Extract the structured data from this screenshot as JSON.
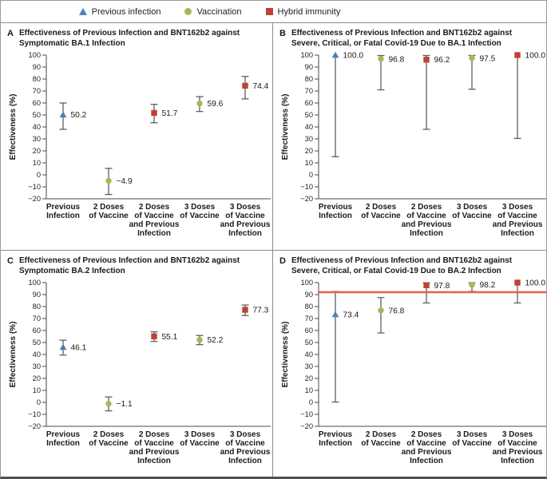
{
  "legend": {
    "items": [
      {
        "icon": "triangle-icon",
        "label": "Previous infection",
        "color": "#4e7fba"
      },
      {
        "icon": "circle-icon",
        "label": "Vaccination",
        "color": "#9fbb58"
      },
      {
        "icon": "square-icon",
        "label": "Hybrid immunity",
        "color": "#bf4136"
      }
    ]
  },
  "colors": {
    "previous_infection": "#4e7fba",
    "vaccination": "#9fbb58",
    "hybrid_immunity": "#bf4136",
    "refline": "#e4604e",
    "error_bar": "#5f5f5f",
    "axis": "#4a4a4a",
    "text": "#1a1a1a"
  },
  "panels": [
    {
      "letter": "A",
      "title_line1": "Effectiveness of Previous Infection and BNT162b2 against",
      "title_line2": "Symptomatic BA.1 Infection"
    },
    {
      "letter": "B",
      "title_line1": "Effectiveness of Previous Infection and BNT162b2 against",
      "title_line2": "Severe, Critical, or Fatal Covid-19 Due to BA.1 Infection"
    },
    {
      "letter": "C",
      "title_line1": "Effectiveness of Previous Infection and BNT162b2 against",
      "title_line2": "Symptomatic BA.2 Infection"
    },
    {
      "letter": "D",
      "title_line1": "Effectiveness of Previous Infection and BNT162b2 against",
      "title_line2": "Severe, Critical, or Fatal Covid-19 Due to BA.2 Infection"
    }
  ],
  "chart_data": [
    {
      "type": "scatter",
      "panel": "A",
      "title": "Effectiveness of Previous Infection and BNT162b2 against Symptomatic BA.1 Infection",
      "ylabel": "Effectiveness (%)",
      "ylim": [
        -20,
        100
      ],
      "ytick_step": 10,
      "grid": false,
      "categories": [
        [
          "Previous",
          "Infection"
        ],
        [
          "2 Doses",
          "of Vaccine"
        ],
        [
          "2 Doses",
          "of Vaccine",
          "and Previous",
          "Infection"
        ],
        [
          "3 Doses",
          "of Vaccine"
        ],
        [
          "3 Doses",
          "of Vaccine",
          "and Previous",
          "Infection"
        ]
      ],
      "points": [
        {
          "marker": "triangle",
          "series": "Previous infection",
          "value": 50.2,
          "label": "50.2",
          "ci_low": 38.0,
          "ci_high": 60.0
        },
        {
          "marker": "circle",
          "series": "Vaccination",
          "value": -4.9,
          "label": "−4.9",
          "ci_low": -16.4,
          "ci_high": 5.4
        },
        {
          "marker": "square",
          "series": "Hybrid immunity",
          "value": 51.7,
          "label": "51.7",
          "ci_low": 43.5,
          "ci_high": 58.9
        },
        {
          "marker": "circle",
          "series": "Vaccination",
          "value": 59.6,
          "label": "59.6",
          "ci_low": 52.9,
          "ci_high": 65.3
        },
        {
          "marker": "square",
          "series": "Hybrid immunity",
          "value": 74.4,
          "label": "74.4",
          "ci_low": 63.4,
          "ci_high": 82.2
        }
      ],
      "refline": null
    },
    {
      "type": "scatter",
      "panel": "B",
      "title": "Effectiveness of Previous Infection and BNT162b2 against Severe, Critical, or Fatal Covid-19 Due to BA.1 Infection",
      "ylabel": "Effectiveness (%)",
      "ylim": [
        -20,
        100
      ],
      "ytick_step": 10,
      "grid": false,
      "categories": [
        [
          "Previous",
          "Infection"
        ],
        [
          "2 Doses",
          "of Vaccine"
        ],
        [
          "2 Doses",
          "of Vaccine",
          "and Previous",
          "Infection"
        ],
        [
          "3 Doses",
          "of Vaccine"
        ],
        [
          "3 Doses",
          "of Vaccine",
          "and Previous",
          "Infection"
        ]
      ],
      "points": [
        {
          "marker": "triangle",
          "series": "Previous infection",
          "value": 100.0,
          "label": "100.0",
          "ci_low": 15.1,
          "ci_high": null
        },
        {
          "marker": "circle",
          "series": "Vaccination",
          "value": 96.8,
          "label": "96.8",
          "ci_low": 71.0,
          "ci_high": 99.6
        },
        {
          "marker": "square",
          "series": "Hybrid immunity",
          "value": 96.2,
          "label": "96.2",
          "ci_low": 38.0,
          "ci_high": 99.7
        },
        {
          "marker": "circle",
          "series": "Vaccination",
          "value": 97.5,
          "label": "97.5",
          "ci_low": 71.5,
          "ci_high": 99.7
        },
        {
          "marker": "square",
          "series": "Hybrid immunity",
          "value": 100.0,
          "label": "100.0",
          "ci_low": 30.4,
          "ci_high": null
        }
      ],
      "refline": null
    },
    {
      "type": "scatter",
      "panel": "C",
      "title": "Effectiveness of Previous Infection and BNT162b2 against Symptomatic BA.2 Infection",
      "ylabel": "Effectiveness (%)",
      "ylim": [
        -20,
        100
      ],
      "ytick_step": 10,
      "grid": false,
      "categories": [
        [
          "Previous",
          "Infection"
        ],
        [
          "2 Doses",
          "of Vaccine"
        ],
        [
          "2 Doses",
          "of Vaccine",
          "and Previous",
          "Infection"
        ],
        [
          "3 Doses",
          "of Vaccine"
        ],
        [
          "3 Doses",
          "of Vaccine",
          "and Previous",
          "Infection"
        ]
      ],
      "points": [
        {
          "marker": "triangle",
          "series": "Previous infection",
          "value": 46.1,
          "label": "46.1",
          "ci_low": 39.5,
          "ci_high": 51.9
        },
        {
          "marker": "circle",
          "series": "Vaccination",
          "value": -1.1,
          "label": "−1.1",
          "ci_low": -7.1,
          "ci_high": 4.5
        },
        {
          "marker": "square",
          "series": "Hybrid immunity",
          "value": 55.1,
          "label": "55.1",
          "ci_low": 50.9,
          "ci_high": 58.9
        },
        {
          "marker": "circle",
          "series": "Vaccination",
          "value": 52.2,
          "label": "52.2",
          "ci_low": 48.2,
          "ci_high": 55.8
        },
        {
          "marker": "square",
          "series": "Hybrid immunity",
          "value": 77.3,
          "label": "77.3",
          "ci_low": 72.5,
          "ci_high": 81.3
        }
      ],
      "refline": null
    },
    {
      "type": "scatter",
      "panel": "D",
      "title": "Effectiveness of Previous Infection and BNT162b2 against Severe, Critical, or Fatal Covid-19 Due to BA.2 Infection",
      "ylabel": "Effectiveness (%)",
      "ylim": [
        -20,
        100
      ],
      "ytick_step": 10,
      "grid": false,
      "categories": [
        [
          "Previous",
          "Infection"
        ],
        [
          "2 Doses",
          "of Vaccine"
        ],
        [
          "2 Doses",
          "of Vaccine",
          "and Previous",
          "Infection"
        ],
        [
          "3 Doses",
          "of Vaccine"
        ],
        [
          "3 Doses",
          "of Vaccine",
          "and Previous",
          "Infection"
        ]
      ],
      "points": [
        {
          "marker": "triangle",
          "series": "Previous infection",
          "value": 73.4,
          "label": "73.4",
          "ci_low": 0.3,
          "ci_high": 92.5
        },
        {
          "marker": "circle",
          "series": "Vaccination",
          "value": 76.8,
          "label": "76.8",
          "ci_low": 58.0,
          "ci_high": 87.5
        },
        {
          "marker": "square",
          "series": "Hybrid immunity",
          "value": 97.8,
          "label": "97.8",
          "ci_low": 83.0,
          "ci_high": 99.8
        },
        {
          "marker": "circle",
          "series": "Vaccination",
          "value": 98.2,
          "label": "98.2",
          "ci_low": 92.6,
          "ci_high": 99.9
        },
        {
          "marker": "square",
          "series": "Hybrid immunity",
          "value": 100.0,
          "label": "100.0",
          "ci_low": 83.0,
          "ci_high": null
        }
      ],
      "refline": {
        "value": 92,
        "color": "#e4604e"
      }
    }
  ]
}
